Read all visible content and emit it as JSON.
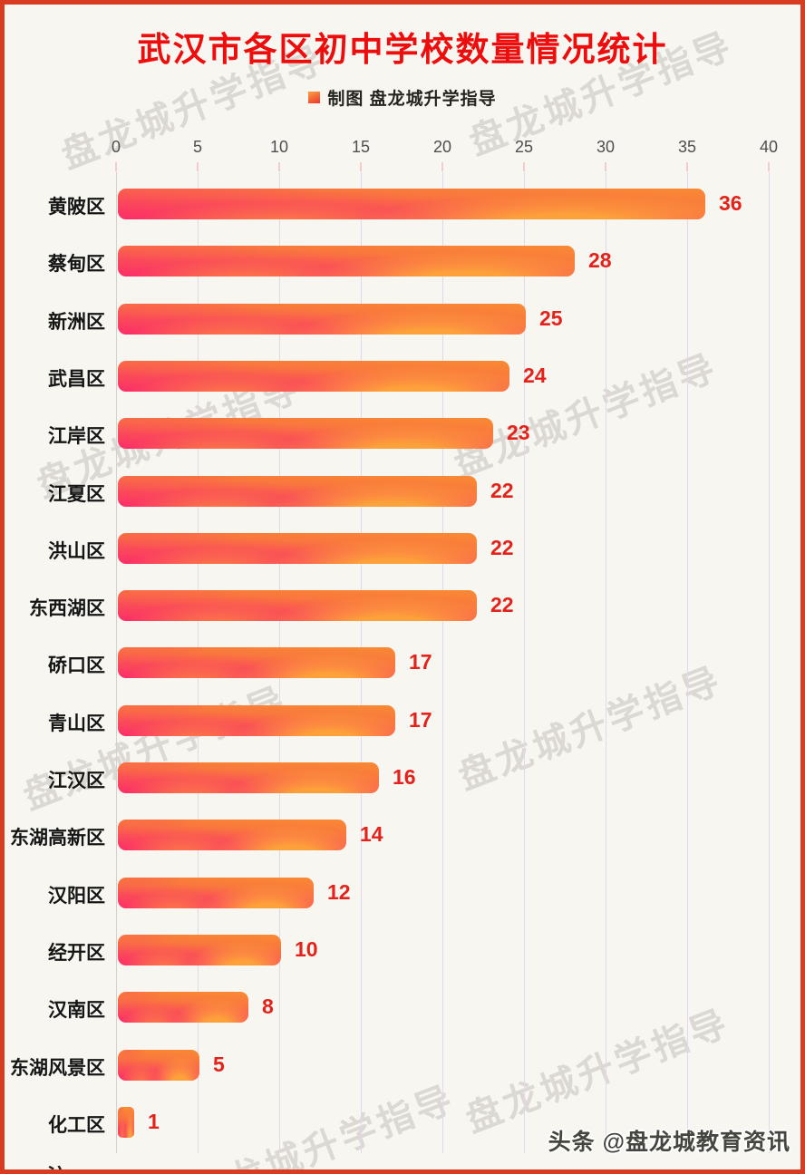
{
  "page": {
    "title": "武汉市各区初中学校数量情况统计",
    "legend": {
      "label": "制图 盘龙城升学指导"
    }
  },
  "chart_data": {
    "type": "bar",
    "orientation": "horizontal",
    "title": "武汉市各区初中学校数量情况统计",
    "legend": "制图 盘龙城升学指导",
    "categories": [
      "黄陂区",
      "蔡甸区",
      "新洲区",
      "武昌区",
      "江岸区",
      "江夏区",
      "洪山区",
      "东西湖区",
      "硚口区",
      "青山区",
      "江汉区",
      "东湖高新区",
      "汉阳区",
      "经开区",
      "汉南区",
      "东湖风景区",
      "化工区"
    ],
    "values": [
      36,
      28,
      25,
      24,
      23,
      22,
      22,
      22,
      17,
      17,
      16,
      14,
      12,
      10,
      8,
      5,
      1
    ],
    "x_ticks": [
      0,
      5,
      10,
      15,
      20,
      25,
      30,
      35,
      40
    ],
    "xlim": [
      0,
      40
    ],
    "grid": "vertical-only",
    "legend_position": "top-center",
    "value_labels": "at-bar-end"
  },
  "watermark": {
    "text": "盘龙城升学指导"
  },
  "footer": {
    "credit": "头条 @盘龙城教育资讯",
    "note": "注"
  },
  "colors": {
    "border": "#d93b20",
    "background": "#f7f6f1",
    "title": "#ee0d0d",
    "value_label": "#e3231b",
    "bar_gradient_top": "#f98a33",
    "bar_gradient_bottom": "#fc2e68",
    "gridline": "#e5d7e9",
    "axis_line": "#d4d2cd",
    "axis_text": "#4f4f4f",
    "category_text": "#151515"
  }
}
